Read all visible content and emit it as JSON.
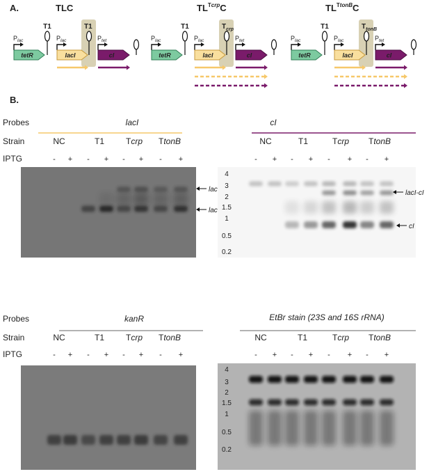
{
  "panel_a": {
    "label": "A.",
    "constructs": [
      {
        "title": {
          "main": "TLC"
        },
        "upstream_terminator": "T1",
        "promoter1": {
          "letter": "P",
          "sub": "lac"
        },
        "gene1": "tetR",
        "promoter2": {
          "letter": "P",
          "sub": "lac"
        },
        "gene2": "lacI",
        "terminator": {
          "letter": "T1"
        },
        "promoter3": {
          "letter": "P",
          "sub": "tet"
        },
        "gene3": "cI"
      },
      {
        "title": {
          "main": "TL",
          "sup": {
            "letter": "T",
            "gene": "crp"
          },
          "end": "C"
        },
        "upstream_terminator": "T1",
        "promoter1": {
          "letter": "P",
          "sub": "lac"
        },
        "gene1": "tetR",
        "promoter2": {
          "letter": "P",
          "sub": "lac"
        },
        "gene2": "lacI",
        "terminator": {
          "letter": "T",
          "sub": "crp"
        },
        "promoter3": {
          "letter": "P",
          "sub": "tet"
        },
        "gene3": "cI"
      },
      {
        "title": {
          "main": "TL",
          "sup": {
            "letter": "T",
            "gene": "tonB"
          },
          "end": "C"
        },
        "upstream_terminator": "T1",
        "promoter1": {
          "letter": "P",
          "sub": "lac"
        },
        "gene1": "tetR",
        "promoter2": {
          "letter": "P",
          "sub": "lac"
        },
        "gene2": "lacI",
        "terminator": {
          "letter": "T",
          "sub": "tonB"
        },
        "promoter3": {
          "letter": "P",
          "sub": "tet"
        },
        "gene3": "cI"
      }
    ]
  },
  "panel_b": {
    "label": "B.",
    "blots": [
      {
        "row_labels": [
          "Probes",
          "Strain",
          "IPTG"
        ],
        "probe": "lacI",
        "probe_italic": true,
        "rule_color": "#f6c86a",
        "strains": [
          {
            "text": "NC"
          },
          {
            "text": "T1"
          },
          {
            "text": "T",
            "gene": "crp"
          },
          {
            "text": "T",
            "gene": "tonB"
          }
        ],
        "iptg": [
          "-",
          "+",
          "-",
          "+",
          "-",
          "+",
          "-",
          "+"
        ],
        "band_labels": [
          "lacI-cI",
          "lacI"
        ]
      },
      {
        "probe": "cI",
        "probe_italic": true,
        "rule_color": "#7a1b6a",
        "strains": [
          {
            "text": "NC"
          },
          {
            "text": "T1"
          },
          {
            "text": "T",
            "gene": "crp"
          },
          {
            "text": "T",
            "gene": "tonB"
          }
        ],
        "iptg": [
          "-",
          "+",
          "-",
          "+",
          "-",
          "+",
          "-",
          "+"
        ],
        "ladder": [
          "4",
          "3",
          "2",
          "1.5",
          "1",
          "0.5",
          "0.2"
        ],
        "band_labels": [
          "lacI-cI",
          "cI"
        ]
      },
      {
        "row_labels": [
          "Probes",
          "Strain",
          "IPTG"
        ],
        "probe": "kanR",
        "probe_italic": true,
        "rule_color": "#999999",
        "strains": [
          {
            "text": "NC"
          },
          {
            "text": "T1"
          },
          {
            "text": "T",
            "gene": "crp"
          },
          {
            "text": "T",
            "gene": "tonB"
          }
        ],
        "iptg": [
          "-",
          "+",
          "-",
          "+",
          "-",
          "+",
          "-",
          "+"
        ]
      },
      {
        "probe": "EtBr stain (23S and 16S rRNA)",
        "probe_italic": true,
        "rule_color": "#999999",
        "strains": [
          {
            "text": "NC"
          },
          {
            "text": "T1"
          },
          {
            "text": "T",
            "gene": "crp"
          },
          {
            "text": "T",
            "gene": "tonB"
          }
        ],
        "iptg": [
          "-",
          "+",
          "-",
          "+",
          "-",
          "+",
          "-",
          "+"
        ],
        "ladder": [
          "4",
          "3",
          "2",
          "1.5",
          "1",
          "0.5",
          "0.2"
        ]
      }
    ]
  }
}
